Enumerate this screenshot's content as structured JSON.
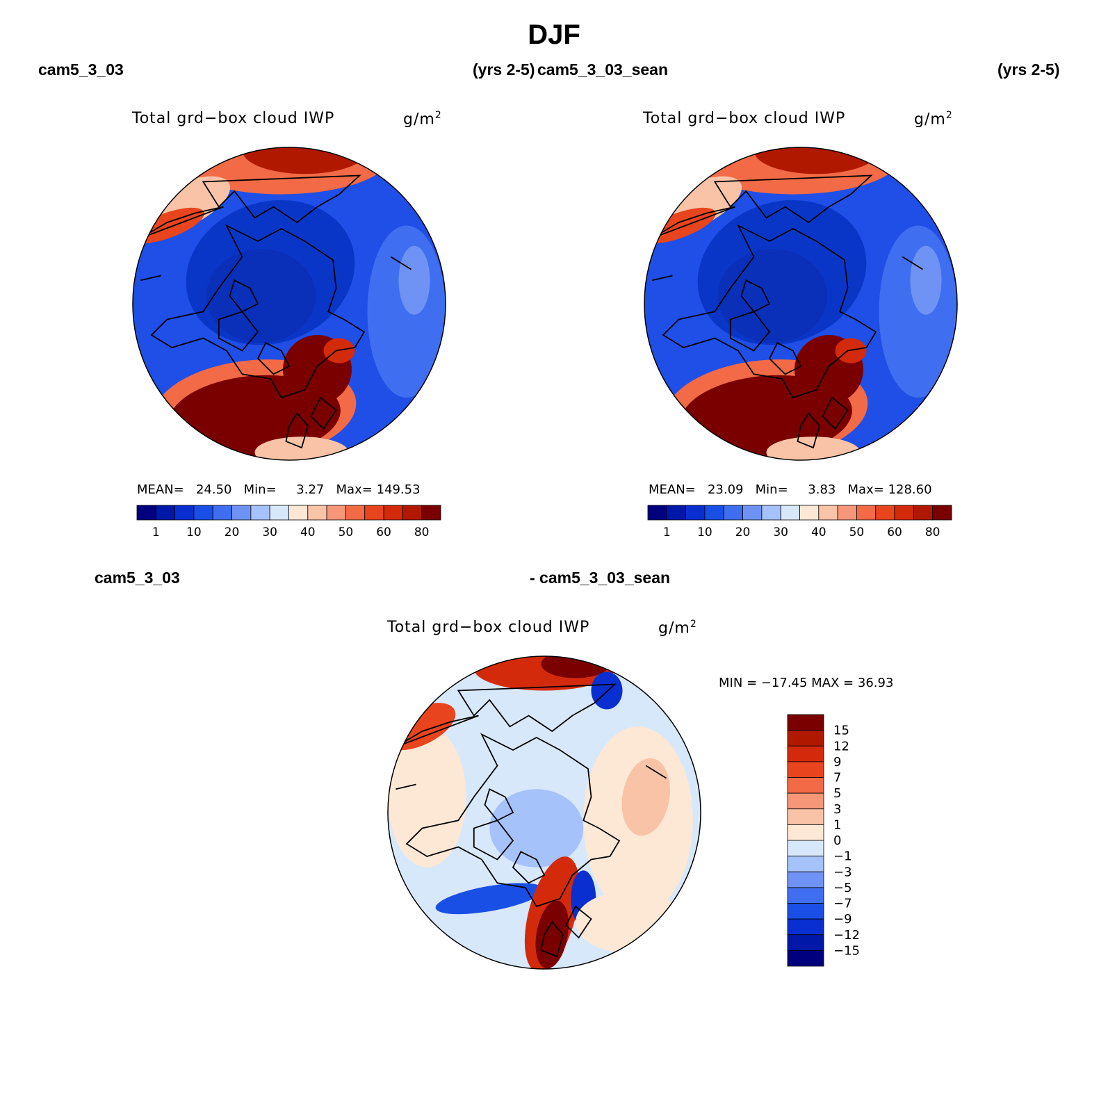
{
  "figure": {
    "title": "DJF",
    "top_left_case": "cam5_3_03",
    "top_left_years": "(yrs 2-5)",
    "top_right_case": "cam5_3_03_sean",
    "top_right_years": "(yrs 2-5)",
    "bottom_case_left": "cam5_3_03",
    "bottom_case_right": "- cam5_3_03_sean"
  },
  "chart_data": [
    {
      "type": "heatmap",
      "projection": "north-polar-stereographic",
      "title": "Total grd−box cloud IWP",
      "units_base": "g/m",
      "units_exp": "2",
      "stats": {
        "mean_label": "MEAN=",
        "mean": "24.50",
        "min_label": "Min=",
        "min": "3.27",
        "max_label": "Max=",
        "max": "149.53"
      },
      "colorbar_ticks": [
        "1",
        "10",
        "20",
        "30",
        "40",
        "50",
        "60",
        "80"
      ],
      "colorbar_colors": [
        "#00007f",
        "#0018a8",
        "#0a2fd0",
        "#1a4fe6",
        "#3f6ff0",
        "#6f93f5",
        "#a6c2fa",
        "#d8e8fb",
        "#fde8d6",
        "#f9c3a8",
        "#f6977a",
        "#f26a46",
        "#e8451e",
        "#d42a0c",
        "#b01800",
        "#7a0000"
      ]
    },
    {
      "type": "heatmap",
      "projection": "north-polar-stereographic",
      "title": "Total grd−box cloud IWP",
      "units_base": "g/m",
      "units_exp": "2",
      "stats": {
        "mean_label": "MEAN=",
        "mean": "23.09",
        "min_label": "Min=",
        "min": "3.83",
        "max_label": "Max=",
        "max": "128.60"
      },
      "colorbar_ticks": [
        "1",
        "10",
        "20",
        "30",
        "40",
        "50",
        "60",
        "80"
      ],
      "colorbar_colors": [
        "#00007f",
        "#0018a8",
        "#0a2fd0",
        "#1a4fe6",
        "#3f6ff0",
        "#6f93f5",
        "#a6c2fa",
        "#d8e8fb",
        "#fde8d6",
        "#f9c3a8",
        "#f6977a",
        "#f26a46",
        "#e8451e",
        "#d42a0c",
        "#b01800",
        "#7a0000"
      ]
    },
    {
      "type": "heatmap",
      "projection": "north-polar-stereographic",
      "title": "Total grd−box cloud IWP",
      "units_base": "g/m",
      "units_exp": "2",
      "stats": {
        "label": "MIN = −17.45 MAX =   36.93",
        "min": -17.45,
        "max": 36.93
      },
      "colorbar_ticks": [
        "15",
        "12",
        "9",
        "7",
        "5",
        "3",
        "1",
        "0",
        "−1",
        "−3",
        "−5",
        "−7",
        "−9",
        "−12",
        "−15"
      ],
      "colorbar_colors": [
        "#7a0000",
        "#b01800",
        "#d42a0c",
        "#e8451e",
        "#f26a46",
        "#f6977a",
        "#f9c3a8",
        "#fde8d6",
        "#d8e8fb",
        "#a6c2fa",
        "#6f93f5",
        "#3f6ff0",
        "#1a4fe6",
        "#0a2fd0",
        "#0018a8",
        "#00007f"
      ]
    }
  ]
}
